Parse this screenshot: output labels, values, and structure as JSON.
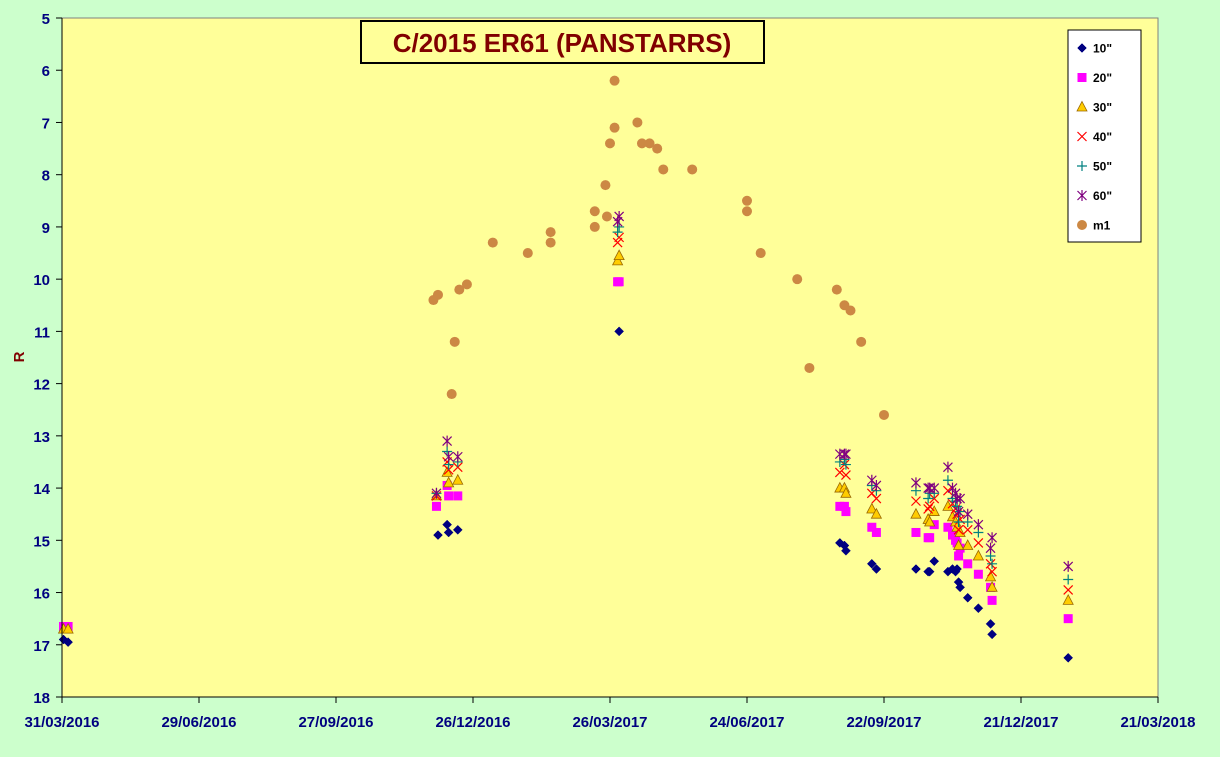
{
  "chart_data": {
    "type": "scatter",
    "title": "C/2015 ER61 (PANSTARRS)",
    "xlabel": "",
    "ylabel": "R",
    "x_ticks": [
      "31/03/2016",
      "29/06/2016",
      "27/09/2016",
      "26/12/2016",
      "26/03/2017",
      "24/06/2017",
      "22/09/2017",
      "21/12/2017",
      "21/03/2018"
    ],
    "xlim": [
      "2016-03-31",
      "2018-03-21"
    ],
    "ylim": [
      5,
      18
    ],
    "y_inverted": true,
    "y_ticks": [
      "5",
      "6",
      "7",
      "8",
      "9",
      "10",
      "11",
      "12",
      "13",
      "14",
      "15",
      "16",
      "17",
      "18"
    ],
    "grid": false,
    "legend_position": "top-right",
    "colors": {
      "plot_bg": "#FFFF99",
      "page_bg": "#CCFFCC",
      "axis_text": "#000080",
      "title_text": "#800000"
    },
    "series": [
      {
        "name": "10\"",
        "marker": "diamond",
        "color": "#000080",
        "points": [
          [
            "2016-04-01",
            16.9
          ],
          [
            "2016-04-04",
            16.95
          ],
          [
            "2016-12-03",
            14.9
          ],
          [
            "2016-12-09",
            14.7
          ],
          [
            "2016-12-10",
            14.85
          ],
          [
            "2016-12-16",
            14.8
          ],
          [
            "2017-04-01",
            11.0
          ],
          [
            "2017-08-24",
            15.05
          ],
          [
            "2017-08-27",
            15.1
          ],
          [
            "2017-08-28",
            15.2
          ],
          [
            "2017-09-14",
            15.45
          ],
          [
            "2017-09-17",
            15.55
          ],
          [
            "2017-10-13",
            15.55
          ],
          [
            "2017-10-21",
            15.6
          ],
          [
            "2017-10-22",
            15.6
          ],
          [
            "2017-10-25",
            15.4
          ],
          [
            "2017-11-03",
            15.6
          ],
          [
            "2017-11-06",
            15.55
          ],
          [
            "2017-11-08",
            15.6
          ],
          [
            "2017-11-09",
            15.55
          ],
          [
            "2017-11-10",
            15.8
          ],
          [
            "2017-11-11",
            15.9
          ],
          [
            "2017-11-16",
            16.1
          ],
          [
            "2017-11-23",
            16.3
          ],
          [
            "2017-12-01",
            16.6
          ],
          [
            "2017-12-02",
            16.8
          ],
          [
            "2018-01-21",
            17.25
          ]
        ]
      },
      {
        "name": "20\"",
        "marker": "square",
        "color": "#FF00FF",
        "points": [
          [
            "2016-04-01",
            16.65
          ],
          [
            "2016-04-04",
            16.65
          ],
          [
            "2016-12-02",
            14.35
          ],
          [
            "2016-12-09",
            13.95
          ],
          [
            "2016-12-10",
            14.15
          ],
          [
            "2016-12-16",
            14.15
          ],
          [
            "2017-03-31",
            10.05
          ],
          [
            "2017-04-01",
            10.05
          ],
          [
            "2017-08-24",
            14.35
          ],
          [
            "2017-08-27",
            14.35
          ],
          [
            "2017-08-28",
            14.45
          ],
          [
            "2017-09-14",
            14.75
          ],
          [
            "2017-09-17",
            14.85
          ],
          [
            "2017-10-13",
            14.85
          ],
          [
            "2017-10-21",
            14.95
          ],
          [
            "2017-10-22",
            14.95
          ],
          [
            "2017-10-25",
            14.7
          ],
          [
            "2017-11-03",
            14.75
          ],
          [
            "2017-11-06",
            14.9
          ],
          [
            "2017-11-08",
            15.0
          ],
          [
            "2017-11-09",
            15.05
          ],
          [
            "2017-11-10",
            15.3
          ],
          [
            "2017-11-11",
            15.15
          ],
          [
            "2017-11-16",
            15.45
          ],
          [
            "2017-11-23",
            15.65
          ],
          [
            "2017-12-01",
            15.9
          ],
          [
            "2017-12-02",
            16.15
          ],
          [
            "2018-01-21",
            16.5
          ]
        ]
      },
      {
        "name": "30\"",
        "marker": "triangle",
        "color": "#FFCC00",
        "points": [
          [
            "2016-04-01",
            16.7
          ],
          [
            "2016-04-04",
            16.7
          ],
          [
            "2016-12-02",
            14.15
          ],
          [
            "2016-12-09",
            13.7
          ],
          [
            "2016-12-10",
            13.9
          ],
          [
            "2016-12-16",
            13.85
          ],
          [
            "2017-03-31",
            9.65
          ],
          [
            "2017-04-01",
            9.55
          ],
          [
            "2017-08-24",
            14.0
          ],
          [
            "2017-08-27",
            14.0
          ],
          [
            "2017-08-28",
            14.1
          ],
          [
            "2017-09-14",
            14.4
          ],
          [
            "2017-09-17",
            14.5
          ],
          [
            "2017-10-13",
            14.5
          ],
          [
            "2017-10-21",
            14.6
          ],
          [
            "2017-10-22",
            14.65
          ],
          [
            "2017-10-25",
            14.45
          ],
          [
            "2017-11-03",
            14.35
          ],
          [
            "2017-11-06",
            14.55
          ],
          [
            "2017-11-08",
            14.65
          ],
          [
            "2017-11-09",
            14.75
          ],
          [
            "2017-11-10",
            15.1
          ],
          [
            "2017-11-11",
            14.85
          ],
          [
            "2017-11-16",
            15.1
          ],
          [
            "2017-11-23",
            15.3
          ],
          [
            "2017-12-01",
            15.7
          ],
          [
            "2017-12-02",
            15.9
          ],
          [
            "2018-01-21",
            16.15
          ]
        ]
      },
      {
        "name": "40\"",
        "marker": "x",
        "color": "#FF0000",
        "points": [
          [
            "2016-12-02",
            14.15
          ],
          [
            "2016-12-09",
            13.5
          ],
          [
            "2016-12-10",
            13.65
          ],
          [
            "2016-12-16",
            13.6
          ],
          [
            "2017-03-31",
            9.3
          ],
          [
            "2017-04-01",
            9.2
          ],
          [
            "2017-08-24",
            13.7
          ],
          [
            "2017-08-27",
            13.55
          ],
          [
            "2017-08-28",
            13.75
          ],
          [
            "2017-09-14",
            14.1
          ],
          [
            "2017-09-17",
            14.2
          ],
          [
            "2017-10-13",
            14.25
          ],
          [
            "2017-10-21",
            14.4
          ],
          [
            "2017-10-22",
            14.35
          ],
          [
            "2017-10-25",
            14.2
          ],
          [
            "2017-11-03",
            14.05
          ],
          [
            "2017-11-06",
            14.3
          ],
          [
            "2017-11-08",
            14.4
          ],
          [
            "2017-11-09",
            14.5
          ],
          [
            "2017-11-10",
            14.8
          ],
          [
            "2017-11-11",
            14.6
          ],
          [
            "2017-11-16",
            14.8
          ],
          [
            "2017-11-23",
            15.05
          ],
          [
            "2017-12-01",
            15.45
          ],
          [
            "2017-12-02",
            15.6
          ],
          [
            "2018-01-21",
            15.95
          ]
        ]
      },
      {
        "name": "50\"",
        "marker": "plus",
        "color": "#008080",
        "points": [
          [
            "2016-12-02",
            14.1
          ],
          [
            "2016-12-09",
            13.3
          ],
          [
            "2016-12-10",
            13.55
          ],
          [
            "2016-12-16",
            13.5
          ],
          [
            "2017-03-31",
            9.1
          ],
          [
            "2017-04-01",
            9.0
          ],
          [
            "2017-08-24",
            13.5
          ],
          [
            "2017-08-27",
            13.45
          ],
          [
            "2017-08-28",
            13.55
          ],
          [
            "2017-09-14",
            13.95
          ],
          [
            "2017-09-17",
            14.05
          ],
          [
            "2017-10-13",
            14.05
          ],
          [
            "2017-10-21",
            14.2
          ],
          [
            "2017-10-22",
            14.1
          ],
          [
            "2017-10-25",
            14.1
          ],
          [
            "2017-11-03",
            13.85
          ],
          [
            "2017-11-06",
            14.2
          ],
          [
            "2017-11-08",
            14.25
          ],
          [
            "2017-11-09",
            14.35
          ],
          [
            "2017-11-10",
            14.65
          ],
          [
            "2017-11-11",
            14.45
          ],
          [
            "2017-11-16",
            14.65
          ],
          [
            "2017-11-23",
            14.85
          ],
          [
            "2017-12-01",
            15.3
          ],
          [
            "2017-12-02",
            15.45
          ],
          [
            "2018-01-21",
            15.75
          ]
        ]
      },
      {
        "name": "60\"",
        "marker": "asterisk",
        "color": "#800080",
        "points": [
          [
            "2016-12-02",
            14.1
          ],
          [
            "2016-12-09",
            13.1
          ],
          [
            "2016-12-10",
            13.4
          ],
          [
            "2016-12-16",
            13.4
          ],
          [
            "2017-03-31",
            8.9
          ],
          [
            "2017-04-01",
            8.8
          ],
          [
            "2017-08-24",
            13.35
          ],
          [
            "2017-08-27",
            13.35
          ],
          [
            "2017-08-28",
            13.35
          ],
          [
            "2017-09-14",
            13.85
          ],
          [
            "2017-09-17",
            13.95
          ],
          [
            "2017-10-13",
            13.9
          ],
          [
            "2017-10-21",
            14.0
          ],
          [
            "2017-10-22",
            14.0
          ],
          [
            "2017-10-25",
            14.0
          ],
          [
            "2017-11-03",
            13.6
          ],
          [
            "2017-11-06",
            14.0
          ],
          [
            "2017-11-08",
            14.1
          ],
          [
            "2017-11-09",
            14.2
          ],
          [
            "2017-11-10",
            14.45
          ],
          [
            "2017-11-11",
            14.2
          ],
          [
            "2017-11-16",
            14.5
          ],
          [
            "2017-11-23",
            14.7
          ],
          [
            "2017-12-01",
            15.15
          ],
          [
            "2017-12-02",
            14.95
          ],
          [
            "2018-01-21",
            15.5
          ]
        ]
      },
      {
        "name": "m1",
        "marker": "circle",
        "color": "#CC8844",
        "points": [
          [
            "2016-11-30",
            10.4
          ],
          [
            "2016-12-03",
            10.3
          ],
          [
            "2016-12-14",
            11.2
          ],
          [
            "2016-12-17",
            10.2
          ],
          [
            "2016-12-12",
            12.2
          ],
          [
            "2016-12-22",
            10.1
          ],
          [
            "2017-01-08",
            9.3
          ],
          [
            "2017-01-31",
            9.5
          ],
          [
            "2017-02-15",
            9.1
          ],
          [
            "2017-02-15",
            9.3
          ],
          [
            "2017-03-16",
            8.7
          ],
          [
            "2017-03-16",
            9.0
          ],
          [
            "2017-03-23",
            8.2
          ],
          [
            "2017-03-24",
            8.8
          ],
          [
            "2017-03-26",
            7.4
          ],
          [
            "2017-03-29",
            7.1
          ],
          [
            "2017-03-29",
            6.2
          ],
          [
            "2017-04-13",
            7.0
          ],
          [
            "2017-04-16",
            7.4
          ],
          [
            "2017-04-21",
            7.4
          ],
          [
            "2017-04-26",
            7.5
          ],
          [
            "2017-04-30",
            7.9
          ],
          [
            "2017-05-19",
            7.9
          ],
          [
            "2017-06-24",
            8.5
          ],
          [
            "2017-06-24",
            8.7
          ],
          [
            "2017-07-03",
            9.5
          ],
          [
            "2017-07-27",
            10.0
          ],
          [
            "2017-08-04",
            11.7
          ],
          [
            "2017-08-22",
            10.2
          ],
          [
            "2017-08-27",
            10.5
          ],
          [
            "2017-08-31",
            10.6
          ],
          [
            "2017-09-07",
            11.2
          ],
          [
            "2017-09-22",
            12.6
          ]
        ]
      }
    ]
  }
}
